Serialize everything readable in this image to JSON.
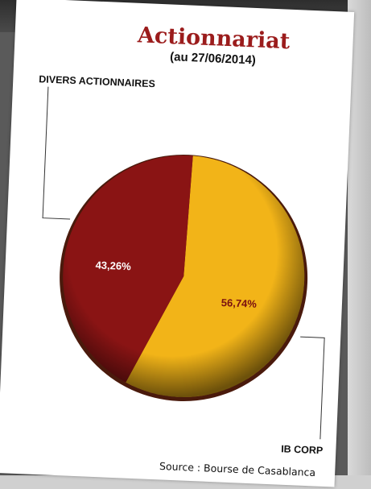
{
  "chart_data": {
    "type": "pie",
    "title": "Actionnariat",
    "subtitle": "(au 27/06/2014)",
    "slices": [
      {
        "name": "DIVERS ACTIONNAIRES",
        "value": 43.26,
        "label": "43,26%",
        "color": "#8a1414",
        "text_color": "#ffffff"
      },
      {
        "name": "IB CORP",
        "value": 56.74,
        "label": "56,74%",
        "color": "#f2b418",
        "text_color": "#7a1010"
      }
    ],
    "source": "Source : Bourse de Casablanca"
  },
  "colors": {
    "title": "#9b1c1c",
    "rim": "#4a1a0c"
  }
}
